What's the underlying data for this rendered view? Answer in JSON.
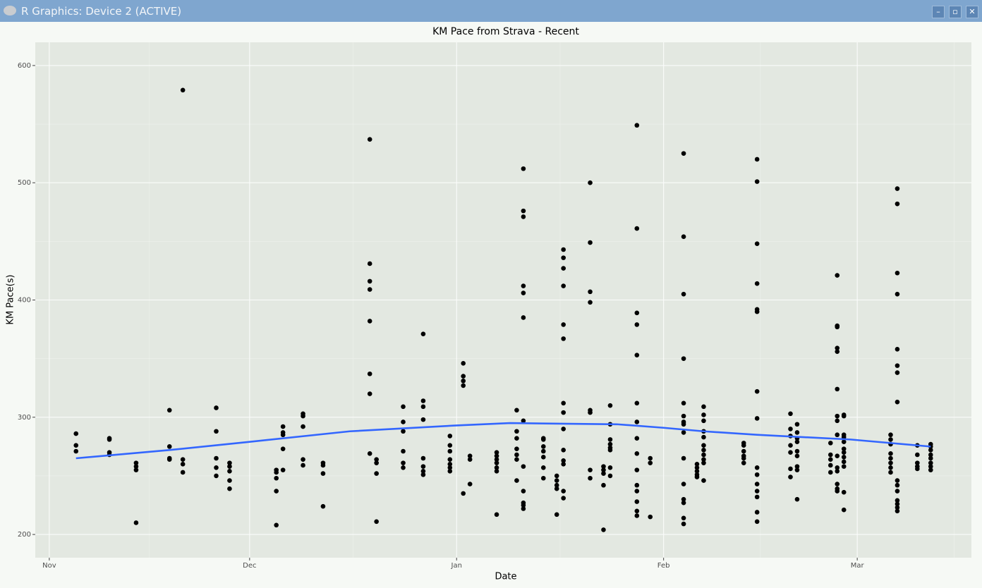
{
  "window_title": "R Graphics: Device 2 (ACTIVE)",
  "chart_data": {
    "type": "scatter",
    "title": "KM Pace from Strava - Recent",
    "x_label": "Date",
    "y_label": "KM Pace(s)",
    "x": [
      4,
      4,
      4,
      9,
      9,
      9,
      9,
      13,
      13,
      13,
      13,
      18,
      18,
      18,
      18,
      20,
      20,
      20,
      20,
      25,
      25,
      25,
      25,
      25,
      27,
      27,
      27,
      27,
      27,
      34,
      34,
      34,
      34,
      34,
      35,
      35,
      35,
      35,
      35,
      38,
      38,
      38,
      38,
      38,
      41,
      41,
      41,
      41,
      48,
      48,
      48,
      48,
      48,
      48,
      48,
      48,
      49,
      49,
      49,
      49,
      53,
      53,
      53,
      53,
      53,
      53,
      56,
      56,
      56,
      56,
      56,
      56,
      56,
      56,
      60,
      60,
      60,
      60,
      60,
      60,
      60,
      62,
      62,
      62,
      62,
      62,
      63,
      63,
      63,
      67,
      67,
      67,
      67,
      67,
      67,
      67,
      70,
      70,
      70,
      70,
      70,
      70,
      70,
      71,
      71,
      71,
      71,
      71,
      71,
      71,
      71,
      71,
      71,
      71,
      71,
      74,
      74,
      74,
      74,
      74,
      74,
      74,
      76,
      76,
      76,
      76,
      76,
      77,
      77,
      77,
      77,
      77,
      77,
      77,
      77,
      77,
      77,
      77,
      77,
      77,
      77,
      81,
      81,
      81,
      81,
      81,
      81,
      81,
      81,
      83,
      83,
      83,
      83,
      83,
      84,
      84,
      84,
      84,
      84,
      84,
      84,
      84,
      88,
      88,
      88,
      88,
      88,
      88,
      88,
      88,
      88,
      88,
      88,
      88,
      88,
      88,
      88,
      90,
      90,
      90,
      95,
      95,
      95,
      95,
      95,
      95,
      95,
      95,
      95,
      95,
      95,
      95,
      95,
      95,
      95,
      97,
      97,
      97,
      97,
      97,
      98,
      98,
      98,
      98,
      98,
      98,
      98,
      98,
      98,
      98,
      98,
      104,
      104,
      104,
      104,
      104,
      104,
      106,
      106,
      106,
      106,
      106,
      106,
      106,
      106,
      106,
      106,
      106,
      106,
      106,
      106,
      106,
      111,
      111,
      111,
      111,
      111,
      111,
      111,
      112,
      112,
      112,
      112,
      112,
      112,
      112,
      112,
      112,
      117,
      117,
      117,
      117,
      117,
      118,
      118,
      118,
      118,
      118,
      118,
      118,
      118,
      118,
      118,
      118,
      118,
      118,
      118,
      118,
      119,
      119,
      119,
      119,
      119,
      119,
      119,
      119,
      119,
      119,
      119,
      119,
      126,
      126,
      126,
      126,
      126,
      126,
      126,
      126,
      127,
      127,
      127,
      127,
      127,
      127,
      127,
      127,
      127,
      127,
      127,
      127,
      127,
      127,
      127,
      130,
      130,
      130,
      130,
      130,
      132,
      132,
      132,
      132,
      132,
      132,
      132,
      132
    ],
    "values": [
      286,
      276,
      271,
      282,
      281,
      270,
      268,
      261,
      258,
      255,
      210,
      306,
      275,
      265,
      264,
      579,
      264,
      260,
      253,
      308,
      288,
      265,
      257,
      250,
      261,
      258,
      254,
      246,
      239,
      255,
      253,
      248,
      237,
      208,
      292,
      287,
      285,
      273,
      255,
      303,
      301,
      292,
      264,
      259,
      261,
      259,
      252,
      224,
      537,
      431,
      416,
      409,
      382,
      337,
      320,
      269,
      264,
      261,
      252,
      211,
      309,
      296,
      288,
      271,
      261,
      257,
      371,
      314,
      309,
      298,
      265,
      258,
      254,
      251,
      284,
      276,
      271,
      264,
      260,
      257,
      254,
      346,
      335,
      331,
      327,
      235,
      267,
      264,
      243,
      270,
      267,
      264,
      261,
      257,
      254,
      217,
      306,
      288,
      282,
      273,
      268,
      264,
      246,
      512,
      476,
      471,
      412,
      406,
      385,
      297,
      258,
      237,
      227,
      225,
      222,
      282,
      281,
      275,
      271,
      266,
      257,
      248,
      250,
      246,
      242,
      239,
      217,
      443,
      436,
      427,
      412,
      379,
      367,
      312,
      304,
      290,
      272,
      263,
      260,
      237,
      231,
      500,
      449,
      407,
      398,
      306,
      304,
      255,
      248,
      258,
      255,
      252,
      242,
      204,
      310,
      294,
      281,
      277,
      274,
      272,
      257,
      250,
      549,
      461,
      389,
      379,
      353,
      312,
      296,
      282,
      269,
      255,
      242,
      237,
      228,
      220,
      216,
      265,
      261,
      215,
      525,
      454,
      405,
      350,
      312,
      301,
      296,
      294,
      287,
      265,
      243,
      230,
      227,
      214,
      209,
      260,
      257,
      254,
      251,
      249,
      309,
      302,
      297,
      288,
      283,
      276,
      272,
      268,
      264,
      261,
      246,
      278,
      276,
      271,
      267,
      265,
      261,
      520,
      501,
      448,
      414,
      392,
      390,
      322,
      299,
      257,
      251,
      243,
      237,
      232,
      219,
      211,
      303,
      290,
      284,
      276,
      270,
      256,
      249,
      294,
      287,
      282,
      279,
      271,
      267,
      258,
      255,
      230,
      278,
      268,
      264,
      259,
      253,
      421,
      378,
      377,
      359,
      356,
      324,
      301,
      297,
      285,
      267,
      257,
      254,
      243,
      239,
      237,
      302,
      301,
      285,
      283,
      279,
      273,
      270,
      266,
      262,
      258,
      236,
      221,
      285,
      281,
      277,
      269,
      265,
      261,
      257,
      253,
      495,
      482,
      423,
      405,
      358,
      344,
      338,
      313,
      246,
      242,
      237,
      229,
      226,
      223,
      220,
      276,
      268,
      261,
      258,
      256,
      277,
      275,
      272,
      268,
      265,
      261,
      258,
      255
    ],
    "color": "#000000",
    "smooth": {
      "color": "#3366ff",
      "x": [
        4,
        18,
        30,
        45,
        61,
        69,
        85,
        92,
        98,
        106,
        120,
        126,
        132
      ],
      "values": [
        265,
        272,
        279,
        288,
        293,
        295,
        294,
        291,
        288,
        285,
        281,
        278,
        275
      ]
    },
    "xlim": [
      -2.1,
      138.1
    ],
    "ylim": [
      180.2,
      619.8
    ],
    "xticks": [
      {
        "value": 0,
        "label": "Nov"
      },
      {
        "value": 30,
        "label": "Dec"
      },
      {
        "value": 61,
        "label": "Jan"
      },
      {
        "value": 92,
        "label": "Feb"
      },
      {
        "value": 121,
        "label": "Mar"
      }
    ],
    "yticks": [
      200,
      300,
      400,
      500,
      600
    ],
    "grid": true
  }
}
